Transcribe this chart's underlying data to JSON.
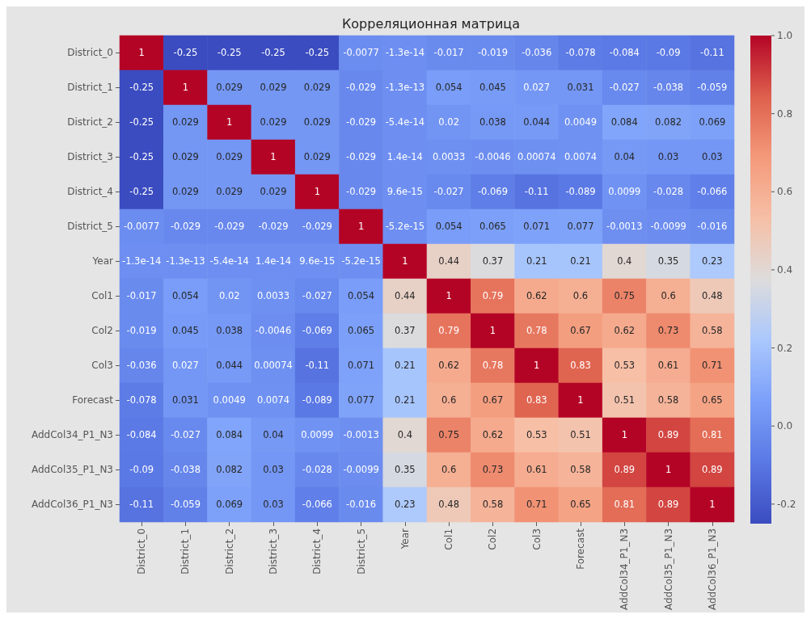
{
  "chart_data": {
    "type": "heatmap",
    "title": "Корреляционная матрица",
    "categories": [
      "District_0",
      "District_1",
      "District_2",
      "District_3",
      "District_4",
      "District_5",
      "Year",
      "Col1",
      "Col2",
      "Col3",
      "Forecast",
      "AddCol34_P1_N3",
      "AddCol35_P1_N3",
      "AddCol36_P1_N3"
    ],
    "y_categories": [
      "District_0",
      "District_1",
      "District_2",
      "District_3",
      "District_4",
      "District_5",
      "Year",
      "Col1",
      "Col2",
      "Col3",
      "Forecast",
      "AddCol34_P1_N3",
      "AddCol35_P1_N3",
      "AddCol36_P1_N3"
    ],
    "cells": [
      [
        1,
        -0.25,
        -0.25,
        -0.25,
        -0.25,
        -0.0077,
        -1.3e-14,
        -0.017,
        -0.019,
        -0.036,
        -0.078,
        -0.084,
        -0.09,
        -0.11
      ],
      [
        -0.25,
        1,
        0.029,
        0.029,
        0.029,
        -0.029,
        -1.3e-13,
        0.054,
        0.045,
        0.027,
        0.031,
        -0.027,
        -0.038,
        -0.059
      ],
      [
        -0.25,
        0.029,
        1,
        0.029,
        0.029,
        -0.029,
        -5.4e-14,
        0.02,
        0.038,
        0.044,
        0.0049,
        0.084,
        0.082,
        0.069
      ],
      [
        -0.25,
        0.029,
        0.029,
        1,
        0.029,
        -0.029,
        1.4e-14,
        0.0033,
        -0.0046,
        0.00074,
        0.0074,
        0.04,
        0.03,
        0.03
      ],
      [
        -0.25,
        0.029,
        0.029,
        0.029,
        1,
        -0.029,
        9.6e-15,
        -0.027,
        -0.069,
        -0.11,
        -0.089,
        0.0099,
        -0.028,
        -0.066
      ],
      [
        -0.0077,
        -0.029,
        -0.029,
        -0.029,
        -0.029,
        1,
        -5.2e-15,
        0.054,
        0.065,
        0.071,
        0.077,
        -0.0013,
        -0.0099,
        -0.016
      ],
      [
        -1.3e-14,
        -1.3e-13,
        -5.4e-14,
        1.4e-14,
        9.6e-15,
        -5.2e-15,
        1,
        0.44,
        0.37,
        0.21,
        0.21,
        0.4,
        0.35,
        0.23
      ],
      [
        -0.017,
        0.054,
        0.02,
        0.0033,
        -0.027,
        0.054,
        0.44,
        1,
        0.79,
        0.62,
        0.6,
        0.75,
        0.6,
        0.48
      ],
      [
        -0.019,
        0.045,
        0.038,
        -0.0046,
        -0.069,
        0.065,
        0.37,
        0.79,
        1,
        0.78,
        0.67,
        0.62,
        0.73,
        0.58
      ],
      [
        -0.036,
        0.027,
        0.044,
        0.00074,
        -0.11,
        0.071,
        0.21,
        0.62,
        0.78,
        1,
        0.83,
        0.53,
        0.61,
        0.71
      ],
      [
        -0.078,
        0.031,
        0.0049,
        0.0074,
        -0.089,
        0.077,
        0.21,
        0.6,
        0.67,
        0.83,
        1,
        0.51,
        0.58,
        0.65
      ],
      [
        -0.084,
        -0.027,
        0.084,
        0.04,
        0.0099,
        -0.0013,
        0.4,
        0.75,
        0.62,
        0.53,
        0.51,
        1,
        0.89,
        0.81
      ],
      [
        -0.09,
        -0.038,
        0.082,
        0.03,
        -0.028,
        -0.0099,
        0.35,
        0.6,
        0.73,
        0.61,
        0.58,
        0.89,
        1,
        0.89
      ],
      [
        -0.11,
        -0.059,
        0.069,
        0.03,
        -0.066,
        -0.016,
        0.23,
        0.48,
        0.58,
        0.71,
        0.65,
        0.81,
        0.89,
        1
      ]
    ],
    "data_labels": true,
    "clim": [
      -0.25,
      1
    ],
    "cticks": [
      {
        "value": -0.2,
        "label": "-0.2"
      },
      {
        "value": 0,
        "label": "0.0"
      },
      {
        "value": 0.2,
        "label": "0.2"
      },
      {
        "value": 0.4,
        "label": "0.4"
      },
      {
        "value": 0.6,
        "label": "0.6"
      },
      {
        "value": 0.8,
        "label": "0.8"
      },
      {
        "value": 1,
        "label": "1.0"
      }
    ]
  }
}
